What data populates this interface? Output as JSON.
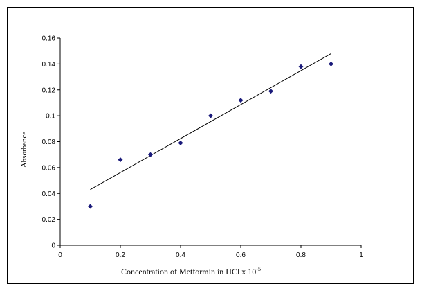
{
  "chart_data": {
    "type": "scatter",
    "title": "",
    "xlabel": "Concentration of Metformin in HCl x 10",
    "xlabel_sup": "-5",
    "ylabel": "Absorbance",
    "xlim": [
      0,
      1
    ],
    "ylim": [
      0,
      0.16
    ],
    "x_ticks": [
      "0",
      "0.2",
      "0.4",
      "0.6",
      "0.8",
      "1"
    ],
    "y_ticks": [
      "0",
      "0.02",
      "0.04",
      "0.06",
      "0.08",
      "0.1",
      "0.12",
      "0.14",
      "0.16"
    ],
    "grid": false,
    "legend": "none",
    "series": [
      {
        "x": [
          0.1,
          0.2,
          0.3,
          0.4,
          0.5,
          0.6,
          0.7,
          0.8,
          0.9
        ],
        "y": [
          0.03,
          0.066,
          0.07,
          0.079,
          0.1,
          0.112,
          0.119,
          0.138,
          0.14
        ],
        "marker": "diamond",
        "color": "#1a1a7a"
      }
    ],
    "trendline": {
      "type": "linear",
      "x": [
        0.1,
        0.9
      ],
      "y": [
        0.043,
        0.148
      ],
      "color": "#000000"
    }
  }
}
